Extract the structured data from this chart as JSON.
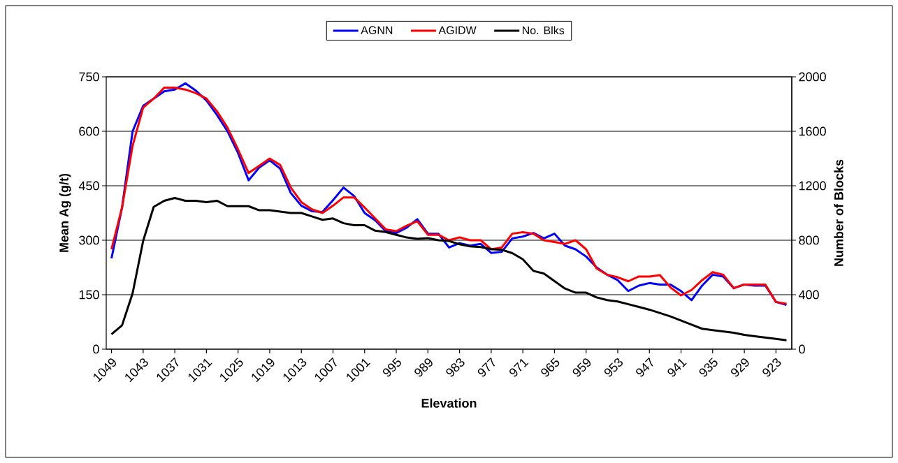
{
  "chart_data": {
    "type": "line",
    "xlabel": "Elevation",
    "ylabel": "Mean Ag (g/t)",
    "y2label": "Number of Blocks",
    "categories": [
      "1049",
      null,
      null,
      "1043",
      null,
      null,
      "1037",
      null,
      null,
      "1031",
      null,
      null,
      "1025",
      null,
      null,
      "1019",
      null,
      null,
      "1013",
      null,
      null,
      "1007",
      null,
      null,
      "1001",
      null,
      null,
      "995",
      null,
      null,
      "989",
      null,
      null,
      "983",
      null,
      null,
      "977",
      null,
      null,
      "971",
      null,
      null,
      "965",
      null,
      null,
      "959",
      null,
      null,
      "953",
      null,
      null,
      "947",
      null,
      null,
      "941",
      null,
      null,
      "935",
      null,
      null,
      "929",
      null,
      null,
      "923",
      null
    ],
    "series": [
      {
        "name": "AGNN",
        "color": "#0000ff",
        "values": [
          250,
          390,
          600,
          670,
          690,
          710,
          715,
          732,
          712,
          685,
          645,
          600,
          540,
          465,
          500,
          520,
          497,
          430,
          395,
          380,
          378,
          410,
          445,
          422,
          375,
          355,
          325,
          320,
          335,
          358,
          318,
          318,
          280,
          292,
          285,
          290,
          265,
          268,
          305,
          310,
          320,
          305,
          318,
          285,
          275,
          255,
          225,
          205,
          190,
          160,
          175,
          182,
          178,
          178,
          160,
          135,
          175,
          205,
          200,
          168,
          178,
          175,
          175,
          130,
          122
        ]
      },
      {
        "name": "AGIDW",
        "color": "#ff0000",
        "values": [
          275,
          390,
          560,
          665,
          690,
          720,
          720,
          715,
          705,
          690,
          655,
          610,
          550,
          485,
          505,
          525,
          507,
          445,
          405,
          385,
          375,
          395,
          418,
          418,
          390,
          360,
          330,
          325,
          340,
          352,
          315,
          315,
          300,
          308,
          300,
          300,
          275,
          280,
          318,
          322,
          318,
          300,
          295,
          290,
          300,
          275,
          222,
          205,
          198,
          187,
          200,
          200,
          204,
          170,
          148,
          163,
          190,
          212,
          205,
          168,
          178,
          178,
          178,
          130,
          125
        ]
      },
      {
        "name": "No. Blks",
        "color": "#000000",
        "axis": "y2",
        "values": [
          110,
          175,
          410,
          795,
          1045,
          1090,
          1110,
          1090,
          1090,
          1080,
          1090,
          1050,
          1050,
          1050,
          1020,
          1020,
          1010,
          1000,
          1000,
          975,
          950,
          960,
          925,
          910,
          910,
          870,
          860,
          840,
          820,
          810,
          815,
          800,
          795,
          770,
          755,
          750,
          735,
          730,
          705,
          660,
          575,
          555,
          500,
          445,
          415,
          415,
          380,
          360,
          350,
          330,
          310,
          290,
          265,
          240,
          210,
          180,
          150,
          140,
          130,
          120,
          105,
          95,
          85,
          75,
          65
        ]
      }
    ],
    "ylim": [
      0,
      750
    ],
    "yticks": [
      0,
      150,
      300,
      450,
      600,
      750
    ],
    "y2lim": [
      0,
      2000
    ],
    "y2ticks": [
      0,
      400,
      800,
      1200,
      1600,
      2000
    ],
    "grid": "y",
    "legend": "top",
    "marker": "none",
    "line_style": "solid"
  }
}
